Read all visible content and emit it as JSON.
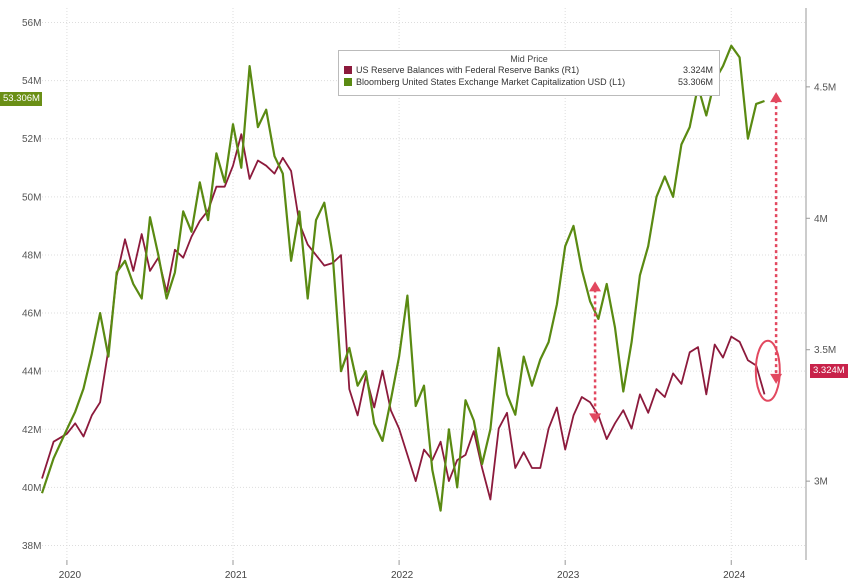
{
  "chart_data": {
    "type": "line",
    "legend": {
      "title": "Mid Price",
      "placement": "top-center",
      "entries": [
        {
          "name": "US Reserve Balances with Federal Reserve Banks  (R1)",
          "value": "3.324M",
          "color": "#8c1a3c"
        },
        {
          "name": "Bloomberg United States Exchange Market Capitalization USD  (L1)",
          "value": "53.306M",
          "color": "#5a8a12"
        }
      ]
    },
    "left_axis": {
      "ticks": [
        "56M",
        "54M",
        "52M",
        "50M",
        "48M",
        "46M",
        "44M",
        "42M",
        "40M",
        "38M"
      ],
      "range": [
        37.5,
        56.5
      ],
      "last_value_label": "53.306M"
    },
    "right_axis": {
      "ticks": [
        "4.5M",
        "4M",
        "3.5M",
        "3M"
      ],
      "range": [
        2.7,
        4.8
      ],
      "last_value_label": "3.324M"
    },
    "x_axis": {
      "ticks": [
        "2020",
        "2021",
        "2022",
        "2023",
        "2024"
      ],
      "tick_dates": [
        2020.0,
        2021.0,
        2022.0,
        2023.0,
        2024.0
      ],
      "range": [
        2019.85,
        2024.45
      ]
    },
    "grid": true,
    "series": [
      {
        "name": "US Reserve Balances with Federal Reserve Banks",
        "axis": "right",
        "color": "#8c1a3c",
        "x": [
          2019.85,
          2019.92,
          2020.0,
          2020.05,
          2020.1,
          2020.15,
          2020.2,
          2020.25,
          2020.3,
          2020.35,
          2020.4,
          2020.45,
          2020.5,
          2020.55,
          2020.6,
          2020.65,
          2020.7,
          2020.75,
          2020.8,
          2020.85,
          2020.9,
          2020.95,
          2021.0,
          2021.05,
          2021.1,
          2021.15,
          2021.2,
          2021.25,
          2021.3,
          2021.35,
          2021.4,
          2021.45,
          2021.5,
          2021.55,
          2021.6,
          2021.65,
          2021.7,
          2021.75,
          2021.8,
          2021.85,
          2021.9,
          2021.95,
          2022.0,
          2022.05,
          2022.1,
          2022.15,
          2022.2,
          2022.25,
          2022.3,
          2022.35,
          2022.4,
          2022.45,
          2022.5,
          2022.55,
          2022.6,
          2022.65,
          2022.7,
          2022.75,
          2022.8,
          2022.85,
          2022.9,
          2022.95,
          2023.0,
          2023.05,
          2023.1,
          2023.15,
          2023.2,
          2023.25,
          2023.3,
          2023.35,
          2023.4,
          2023.45,
          2023.5,
          2023.55,
          2023.6,
          2023.65,
          2023.7,
          2023.75,
          2023.8,
          2023.85,
          2023.9,
          2023.95,
          2024.0,
          2024.05,
          2024.1,
          2024.15,
          2024.2
        ],
        "values": [
          3.01,
          3.15,
          3.18,
          3.22,
          3.17,
          3.25,
          3.3,
          3.5,
          3.78,
          3.92,
          3.8,
          3.94,
          3.8,
          3.85,
          3.72,
          3.88,
          3.85,
          3.93,
          3.99,
          4.03,
          4.12,
          4.12,
          4.2,
          4.32,
          4.15,
          4.22,
          4.2,
          4.17,
          4.23,
          4.18,
          3.98,
          3.9,
          3.86,
          3.82,
          3.83,
          3.86,
          3.35,
          3.25,
          3.4,
          3.28,
          3.42,
          3.27,
          3.2,
          3.1,
          3.0,
          3.12,
          3.08,
          3.15,
          3.0,
          3.08,
          3.1,
          3.19,
          3.05,
          2.93,
          3.2,
          3.26,
          3.05,
          3.11,
          3.05,
          3.05,
          3.2,
          3.28,
          3.12,
          3.25,
          3.32,
          3.3,
          3.25,
          3.16,
          3.22,
          3.27,
          3.2,
          3.33,
          3.26,
          3.35,
          3.32,
          3.41,
          3.37,
          3.49,
          3.51,
          3.33,
          3.52,
          3.47,
          3.55,
          3.53,
          3.46,
          3.44,
          3.33
        ]
      },
      {
        "name": "Bloomberg United States Exchange Market Capitalization USD",
        "axis": "left",
        "color": "#5a8a12",
        "x": [
          2019.85,
          2019.92,
          2020.0,
          2020.05,
          2020.1,
          2020.15,
          2020.2,
          2020.25,
          2020.3,
          2020.35,
          2020.4,
          2020.45,
          2020.5,
          2020.55,
          2020.6,
          2020.65,
          2020.7,
          2020.75,
          2020.8,
          2020.85,
          2020.9,
          2020.95,
          2021.0,
          2021.05,
          2021.1,
          2021.15,
          2021.2,
          2021.25,
          2021.3,
          2021.35,
          2021.4,
          2021.45,
          2021.5,
          2021.55,
          2021.6,
          2021.65,
          2021.7,
          2021.75,
          2021.8,
          2021.85,
          2021.9,
          2021.95,
          2022.0,
          2022.05,
          2022.1,
          2022.15,
          2022.2,
          2022.25,
          2022.3,
          2022.35,
          2022.4,
          2022.45,
          2022.5,
          2022.55,
          2022.6,
          2022.65,
          2022.7,
          2022.75,
          2022.8,
          2022.85,
          2022.9,
          2022.95,
          2023.0,
          2023.05,
          2023.1,
          2023.15,
          2023.2,
          2023.25,
          2023.3,
          2023.35,
          2023.4,
          2023.45,
          2023.5,
          2023.55,
          2023.6,
          2023.65,
          2023.7,
          2023.75,
          2023.8,
          2023.85,
          2023.9,
          2023.95,
          2024.0,
          2024.05,
          2024.1,
          2024.15,
          2024.2
        ],
        "values": [
          39.8,
          41.0,
          42.0,
          42.6,
          43.4,
          44.6,
          46.0,
          44.5,
          47.4,
          47.8,
          47.0,
          46.5,
          49.3,
          48.0,
          46.5,
          47.4,
          49.5,
          48.8,
          50.5,
          49.2,
          51.5,
          50.5,
          52.5,
          51.0,
          54.5,
          52.4,
          53.0,
          51.4,
          50.8,
          47.8,
          49.5,
          46.5,
          49.2,
          49.8,
          48.0,
          44.0,
          44.8,
          43.5,
          44.0,
          42.2,
          41.6,
          43.0,
          44.5,
          46.6,
          42.8,
          43.5,
          40.6,
          39.2,
          42.0,
          40.0,
          43.0,
          42.3,
          40.8,
          42.0,
          44.8,
          43.2,
          42.5,
          44.5,
          43.5,
          44.4,
          45.0,
          46.3,
          48.3,
          49.0,
          47.5,
          46.4,
          45.8,
          47.0,
          45.5,
          43.3,
          45.0,
          47.3,
          48.3,
          50.0,
          50.7,
          50.0,
          51.8,
          52.4,
          53.8,
          52.8,
          54.0,
          54.5,
          55.2,
          54.8,
          52.0,
          53.2,
          53.3
        ]
      }
    ],
    "annotations": [
      {
        "type": "double-arrow",
        "x": 2023.18,
        "from": 3.22,
        "to": 3.76,
        "axis": "right",
        "color": "#e2485f"
      },
      {
        "type": "double-arrow",
        "x": 2024.27,
        "from": 3.37,
        "to": 4.48,
        "axis": "right",
        "color": "#e2485f"
      },
      {
        "type": "ellipse",
        "x": 2024.22,
        "y": 3.42,
        "axis": "right",
        "color": "#e2485f"
      }
    ]
  }
}
